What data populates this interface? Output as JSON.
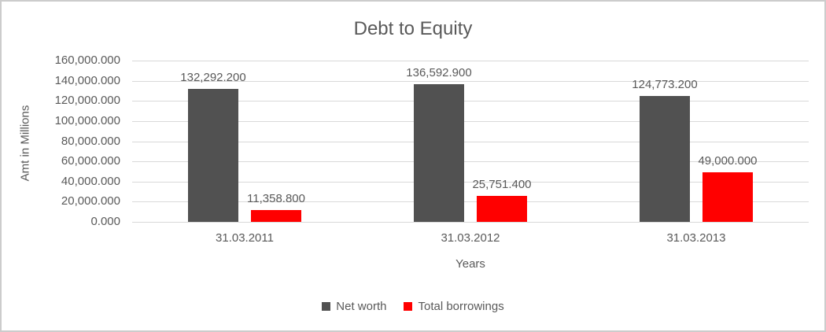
{
  "window": {
    "background": "#ffffff",
    "border_color": "#cccccc"
  },
  "chart_data": {
    "type": "bar",
    "title": "Debt to Equity",
    "xlabel": "Years",
    "ylabel": "Amt in Millions",
    "categories": [
      "31.03.2011",
      "31.03.2012",
      "31.03.2013"
    ],
    "series": [
      {
        "name": "Net worth",
        "color": "#515151",
        "values": [
          132292.2,
          136592.9,
          124773.2
        ],
        "data_labels": [
          "132,292.200",
          "136,592.900",
          "124,773.200"
        ]
      },
      {
        "name": "Total borrowings",
        "color": "#ff0000",
        "values": [
          11358.8,
          25751.4,
          49000.0
        ],
        "data_labels": [
          "11,358.800",
          "25,751.400",
          "49,000.000"
        ]
      }
    ],
    "y_axis": {
      "min": 0,
      "max": 160000,
      "step": 20000,
      "tick_labels_top_to_bottom": [
        "160,000.000",
        "140,000.000",
        "120,000.000",
        "100,000.000",
        "80,000.000",
        "60,000.000",
        "40,000.000",
        "20,000.000",
        "0.000"
      ]
    },
    "grid": true,
    "legend_position": "bottom",
    "text_color": "#595959",
    "gridline_color": "#d9d9d9"
  }
}
